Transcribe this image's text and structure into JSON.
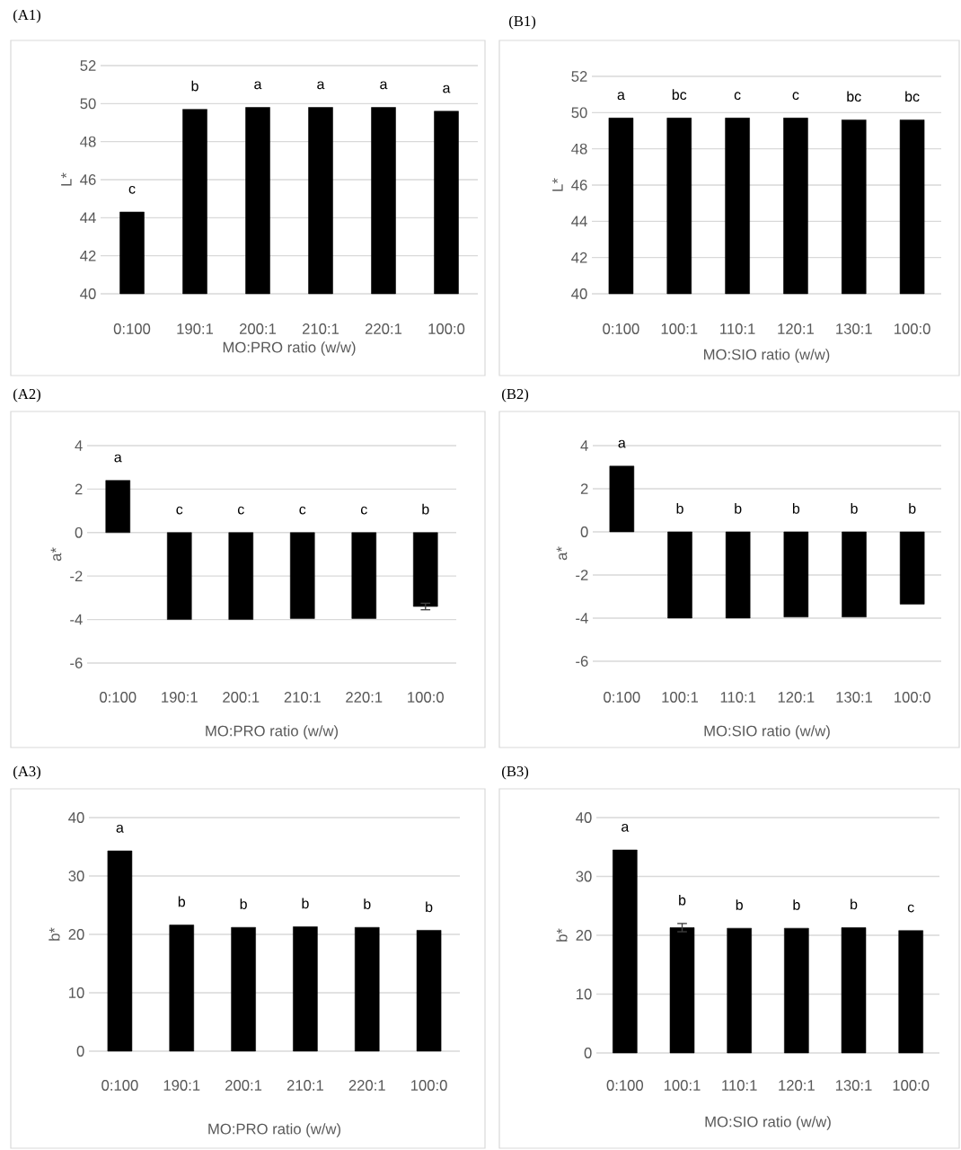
{
  "chart_data": [
    {
      "type": "bar",
      "title": "(A1)",
      "categories": [
        "0:100",
        "190:1",
        "200:1",
        "210:1",
        "220:1",
        "100:0"
      ],
      "values": [
        44.3,
        49.7,
        49.8,
        49.8,
        49.8,
        49.6
      ],
      "color": "#000000",
      "xlabel": "MO:PRO ratio (w/w)",
      "ylabel": "L*",
      "ylim": [
        40,
        52
      ],
      "yticks": [
        40,
        42,
        44,
        46,
        48,
        50,
        52
      ],
      "grid": "y",
      "annotations": [
        "c",
        "b",
        "a",
        "a",
        "a",
        "a"
      ]
    },
    {
      "type": "bar",
      "title": "(B1)",
      "categories": [
        "0:100",
        "100:1",
        "110:1",
        "120:1",
        "130:1",
        "100:0"
      ],
      "values": [
        49.7,
        49.7,
        49.7,
        49.7,
        49.6,
        49.6
      ],
      "color": "#000000",
      "xlabel": "MO:SIO ratio (w/w)",
      "ylabel": "L*",
      "ylim": [
        40,
        52
      ],
      "yticks": [
        40,
        42,
        44,
        46,
        48,
        50,
        52
      ],
      "grid": "y",
      "annotations": [
        "a",
        "bc",
        "c",
        "c",
        "bc",
        "bc"
      ]
    },
    {
      "type": "bar",
      "title": "(A2)",
      "categories": [
        "0:100",
        "190:1",
        "200:1",
        "210:1",
        "220:1",
        "100:0"
      ],
      "values": [
        2.4,
        -4.0,
        -4.0,
        -3.95,
        -3.95,
        -3.4
      ],
      "errors": [
        null,
        null,
        null,
        null,
        null,
        0.15
      ],
      "color": "#000000",
      "xlabel": "MO:PRO ratio (w/w)",
      "ylabel": "a*",
      "ylim": [
        -6,
        4
      ],
      "yticks": [
        -6,
        -4,
        -2,
        0,
        2,
        4
      ],
      "grid": "y",
      "annotations": [
        "a",
        "c",
        "c",
        "c",
        "c",
        "b"
      ]
    },
    {
      "type": "bar",
      "title": "(B2)",
      "categories": [
        "0:100",
        "100:1",
        "110:1",
        "120:1",
        "130:1",
        "100:0"
      ],
      "values": [
        3.05,
        -4.0,
        -4.0,
        -3.95,
        -3.95,
        -3.35
      ],
      "color": "#000000",
      "xlabel": "MO:SIO ratio (w/w)",
      "ylabel": "a*",
      "ylim": [
        -6,
        4
      ],
      "yticks": [
        -6,
        -4,
        -2,
        0,
        2,
        4
      ],
      "grid": "y",
      "annotations": [
        "a",
        "b",
        "b",
        "b",
        "b",
        "b"
      ]
    },
    {
      "type": "bar",
      "title": "(A3)",
      "categories": [
        "0:100",
        "190:1",
        "200:1",
        "210:1",
        "220:1",
        "100:0"
      ],
      "values": [
        34.3,
        21.6,
        21.2,
        21.3,
        21.2,
        20.7
      ],
      "color": "#000000",
      "xlabel": "MO:PRO ratio (w/w)",
      "ylabel": "b*",
      "ylim": [
        0,
        40
      ],
      "yticks": [
        0,
        10,
        20,
        30,
        40
      ],
      "grid": "y",
      "annotations": [
        "a",
        "b",
        "b",
        "b",
        "b",
        "b"
      ]
    },
    {
      "type": "bar",
      "title": "(B3)",
      "categories": [
        "0:100",
        "100:1",
        "110:1",
        "120:1",
        "130:1",
        "100:0"
      ],
      "values": [
        34.5,
        21.3,
        21.2,
        21.2,
        21.3,
        20.8
      ],
      "errors": [
        null,
        0.7,
        null,
        null,
        null,
        null
      ],
      "color": "#000000",
      "xlabel": "MO:SIO ratio (w/w)",
      "ylabel": "b*",
      "ylim": [
        0,
        40
      ],
      "yticks": [
        0,
        10,
        20,
        30,
        40
      ],
      "grid": "y",
      "annotations": [
        "a",
        "b",
        "b",
        "b",
        "b",
        "c"
      ]
    }
  ]
}
